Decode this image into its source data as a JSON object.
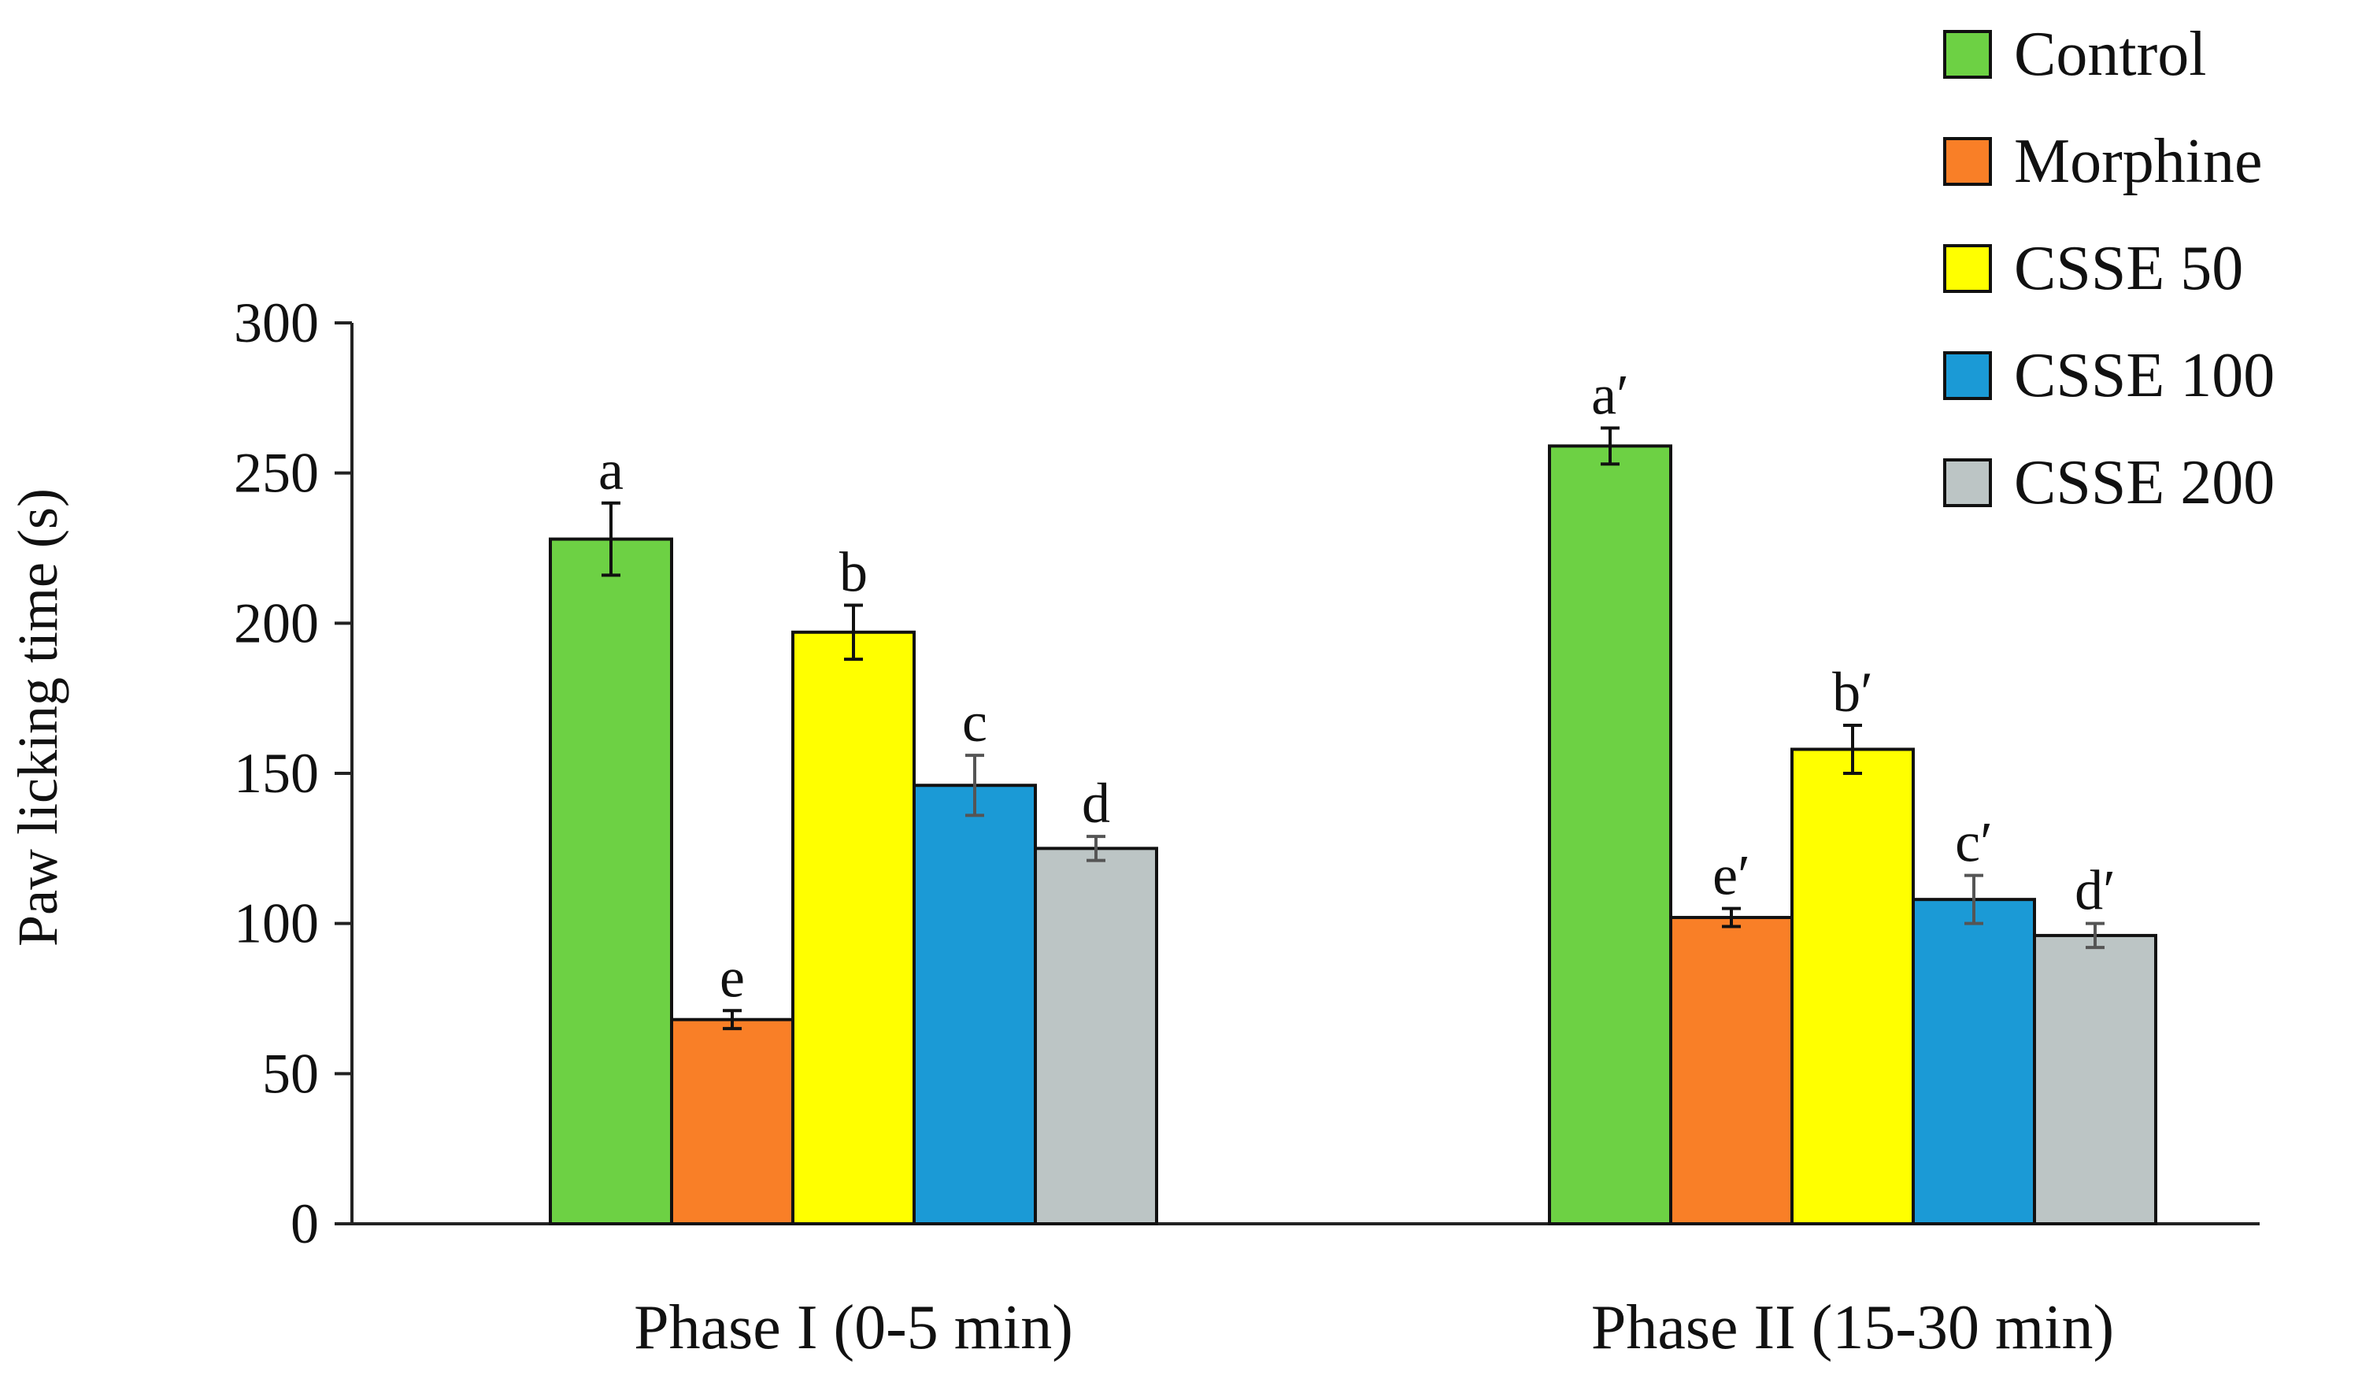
{
  "chart_data": {
    "type": "bar",
    "title": "",
    "xlabel": "",
    "ylabel": "Paw licking time (s)",
    "ylim": [
      0,
      300
    ],
    "yticks": [
      0,
      50,
      100,
      150,
      200,
      250,
      300
    ],
    "grid": false,
    "legend_position": "top-right",
    "categories": [
      "Phase I (0-5 min)",
      "Phase II (15-30 min)"
    ],
    "series": [
      {
        "name": "Control",
        "color": "#6dd144",
        "values": [
          228,
          259
        ],
        "errors": [
          12,
          6
        ],
        "labels": [
          "a",
          "a′"
        ]
      },
      {
        "name": "Morphine",
        "color": "#f97f27",
        "values": [
          68,
          102
        ],
        "errors": [
          3,
          3
        ],
        "labels": [
          "e",
          "e′"
        ]
      },
      {
        "name": "CSSE 50",
        "color": "#ffff00",
        "values": [
          197,
          158
        ],
        "errors": [
          9,
          8
        ],
        "labels": [
          "b",
          "b′"
        ]
      },
      {
        "name": "CSSE 100",
        "color": "#1b9ad6",
        "values": [
          146,
          108
        ],
        "errors": [
          10,
          8
        ],
        "labels": [
          "c",
          "c′"
        ]
      },
      {
        "name": "CSSE 200",
        "color": "#bcc5c5",
        "values": [
          125,
          96
        ],
        "errors": [
          4,
          4
        ],
        "labels": [
          "d",
          "d′"
        ]
      }
    ]
  }
}
